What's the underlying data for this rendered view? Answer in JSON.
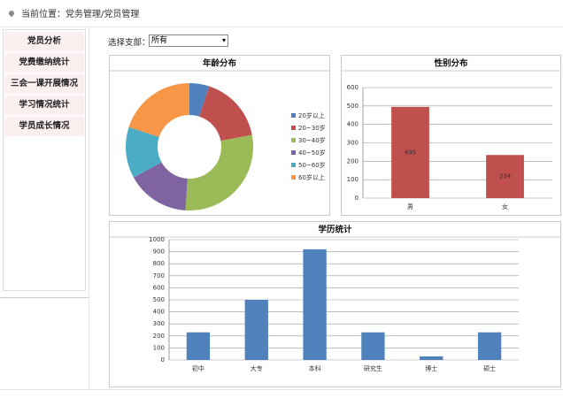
{
  "breadcrumb": "当前位置：党务管理/党员管理",
  "menu": [
    "党员分析",
    "党费缴纳统计",
    "三会一课开展情况",
    "学习情况统计",
    "学员成长情况"
  ],
  "filter": {
    "label": "选择支部：",
    "value": "所有"
  },
  "chart_data": [
    {
      "type": "pie",
      "title": "年龄分布",
      "categories": [
        "20岁以上",
        "20~30岁",
        "30~40岁",
        "40~50岁",
        "50~60岁",
        "60岁以上"
      ],
      "values": [
        5,
        17,
        29,
        16,
        13,
        20
      ],
      "colors": [
        "#4f81bd",
        "#c0504d",
        "#9bbb59",
        "#8064a2",
        "#4bacc6",
        "#f79646"
      ],
      "legend": "right"
    },
    {
      "type": "bar",
      "title": "性别分布",
      "categories": [
        "男",
        "女"
      ],
      "values": [
        495,
        234
      ],
      "color": "#c0504d",
      "ylim": [
        0,
        600
      ],
      "yticks": [
        0,
        100,
        200,
        300,
        400,
        500,
        600
      ],
      "grid": true,
      "data_labels": true
    },
    {
      "type": "bar",
      "title": "学历统计",
      "categories": [
        "初中",
        "大专",
        "本科",
        "研究生",
        "博士",
        "硕士"
      ],
      "values": [
        230,
        500,
        920,
        230,
        30,
        230
      ],
      "color": "#4f81bd",
      "ylim": [
        0,
        1000
      ],
      "yticks": [
        0,
        100,
        200,
        300,
        400,
        500,
        600,
        700,
        800,
        900,
        1000
      ],
      "grid": true,
      "data_labels": false
    }
  ]
}
